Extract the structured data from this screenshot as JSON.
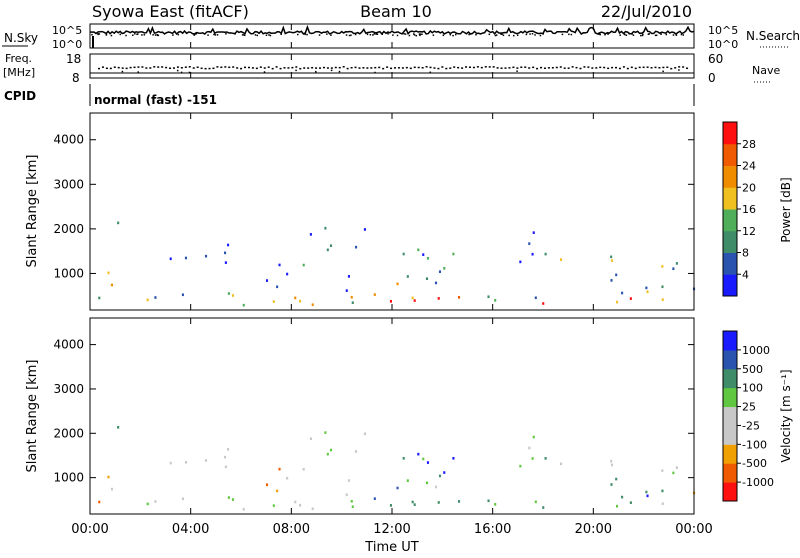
{
  "header": {
    "title": "Syowa East (fitACF)",
    "beam": "Beam 10",
    "date": "22/Jul/2010"
  },
  "panels": {
    "nsky": {
      "left_label": "N.Sky",
      "right_label": "N.Search",
      "left_ticks": [
        "10^5",
        "10^0"
      ],
      "right_ticks": [
        "10^5",
        "10^0"
      ]
    },
    "freq": {
      "left_label_1": "Freq.",
      "left_label_2": "[MHz]",
      "right_label": "Nave",
      "left_ticks": [
        "18",
        "8"
      ],
      "right_ticks": [
        "60",
        "0"
      ]
    },
    "cpid": {
      "label": "CPID",
      "value": "normal (fast) -151"
    }
  },
  "colors": {
    "power": [
      "#1a1aff",
      "#2a53b0",
      "#3f8c68",
      "#4fae5a",
      "#f0c020",
      "#f08c00",
      "#f05a00",
      "#ff1010"
    ],
    "velocity": [
      "#ff1010",
      "#f05a00",
      "#f0a000",
      "#c8c8c8",
      "#c8c8c8",
      "#60c840",
      "#3f8c68",
      "#2a53b0",
      "#1a1aff"
    ]
  },
  "chart_data": [
    {
      "type": "heatmap",
      "quantity": "Power",
      "xlabel": "",
      "ylabel": "Slant Range [km]",
      "x_ticks": [
        "00:00",
        "04:00",
        "08:00",
        "12:00",
        "16:00",
        "20:00",
        "00:00"
      ],
      "x_range_hours": [
        0,
        24
      ],
      "ylim": [
        180,
        4600
      ],
      "y_ticks": [
        1000,
        2000,
        3000,
        4000
      ],
      "colorbar_label": "Power [dB]",
      "colorbar_ticks": [
        "4",
        "8",
        "12",
        "16",
        "20",
        "24",
        "28"
      ],
      "colorbar_range": [
        0,
        30
      ]
    },
    {
      "type": "heatmap",
      "quantity": "Velocity",
      "xlabel": "Time UT",
      "ylabel": "Slant Range [km]",
      "x_ticks": [
        "00:00",
        "04:00",
        "08:00",
        "12:00",
        "16:00",
        "20:00",
        "00:00"
      ],
      "x_range_hours": [
        0,
        24
      ],
      "ylim": [
        180,
        4600
      ],
      "y_ticks": [
        1000,
        2000,
        3000,
        4000
      ],
      "colorbar_label": "Velocity [m s⁻¹]",
      "colorbar_ticks": [
        "-1000",
        "-500",
        "-100",
        "-25",
        "25",
        "100",
        "500",
        "1000"
      ]
    }
  ]
}
